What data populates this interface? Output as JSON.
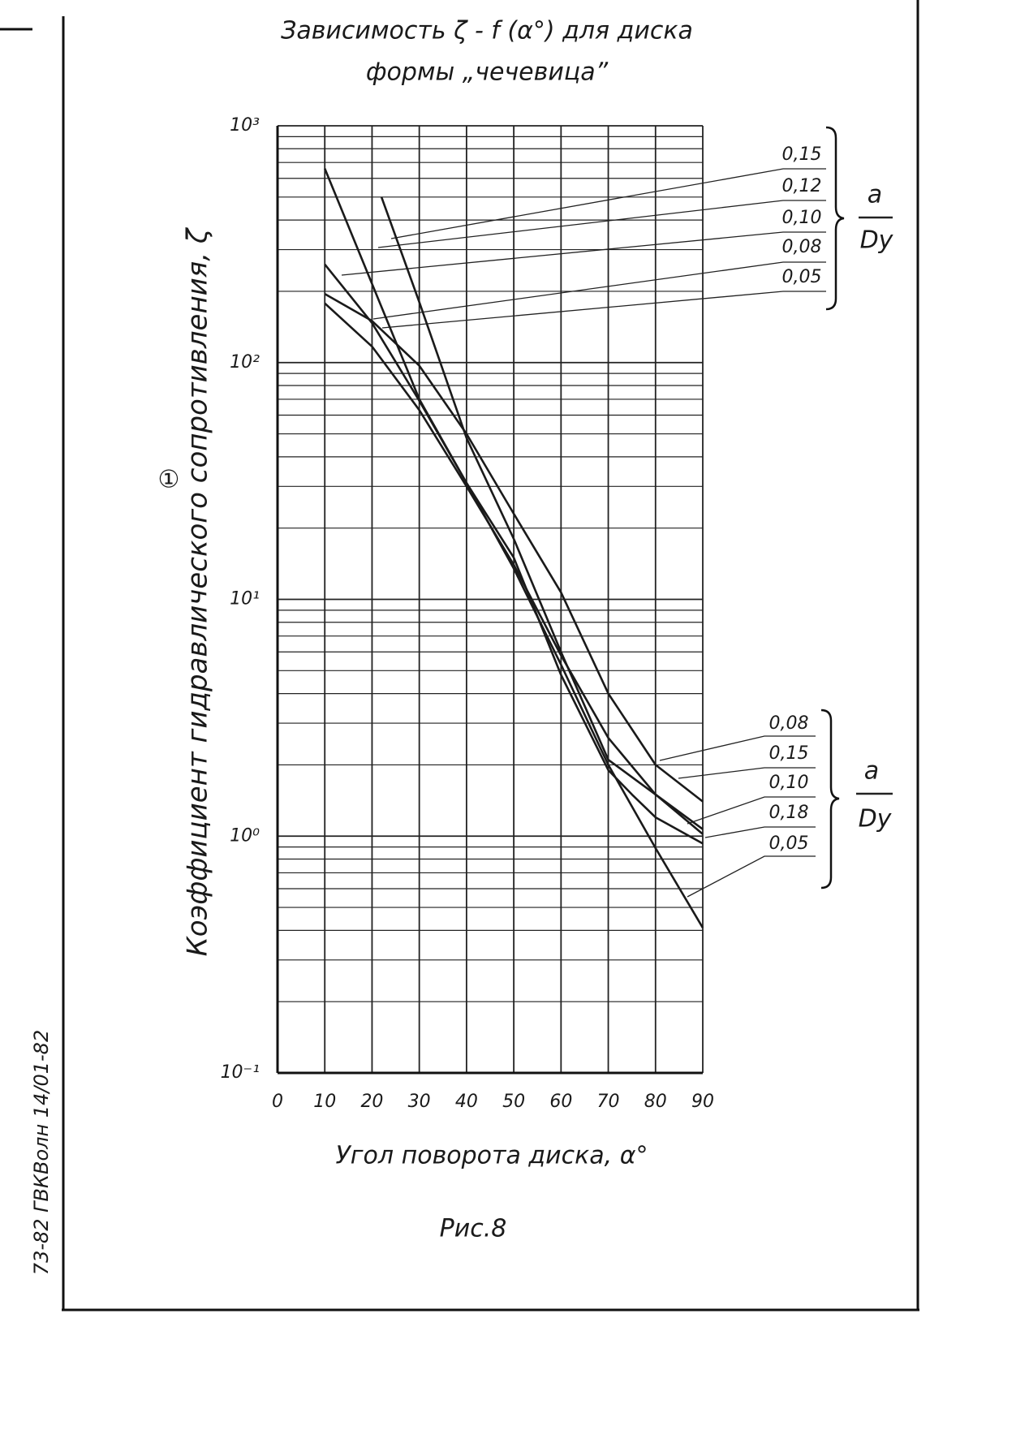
{
  "chart_data": {
    "type": "line",
    "title": "Зависимость ζ - f (α°) для диска",
    "subtitle": "формы „чечевица”",
    "figure_number": "①",
    "x_label": "Угол поворота диска, α°",
    "y_label": "Коэффициент гидравлического сопротивления, ζ",
    "caption": "Рис.8",
    "margin_note": "73-82  ГВКВолн 14/01-82",
    "legend_title": {
      "top": "a",
      "bottom": "Dу"
    },
    "secondary_legend": [
      "0,08",
      "0,15",
      "0,10",
      "0,18",
      "0,05"
    ],
    "log_y": true,
    "grid": true,
    "xlim": [
      0,
      90
    ],
    "xticks": [
      0,
      10,
      20,
      30,
      40,
      50,
      60,
      70,
      80,
      90
    ],
    "ylim": [
      0.1,
      1000
    ],
    "yticks": [
      {
        "value": 1000,
        "label": "10³"
      },
      {
        "value": 100,
        "label": "10²"
      },
      {
        "value": 10,
        "label": "10¹"
      },
      {
        "value": 1,
        "label": "10⁰"
      },
      {
        "value": 0.1,
        "label": "10⁻¹"
      }
    ],
    "minor_grid_y": [
      0.2,
      0.3,
      0.4,
      0.5,
      0.6,
      0.7,
      0.8,
      0.9,
      2,
      3,
      4,
      5,
      6,
      7,
      8,
      9,
      20,
      30,
      40,
      50,
      60,
      70,
      80,
      90,
      200,
      300,
      400,
      500,
      600,
      700,
      800,
      900
    ],
    "series": [
      {
        "name": "0,15",
        "color": "#1a1a1a",
        "x": [
          22,
          30,
          40,
          50,
          60,
          70,
          80,
          90
        ],
        "values": [
          500,
          180,
          48,
          18,
          6,
          2.1,
          1.5,
          1.07
        ]
      },
      {
        "name": "0,12",
        "color": "#1a1a1a",
        "x": [
          10,
          30,
          40,
          50,
          60,
          70,
          75,
          80,
          90
        ],
        "values": [
          660,
          70,
          31,
          15,
          4.8,
          1.9,
          1.5,
          1.2,
          0.93
        ]
      },
      {
        "name": "0,10",
        "color": "#1a1a1a",
        "x": [
          10,
          20,
          30,
          40,
          50,
          60,
          70,
          80,
          90
        ],
        "values": [
          260,
          147,
          69,
          31,
          13.5,
          5.3,
          2,
          0.89,
          0.41
        ]
      },
      {
        "name": "0,08",
        "color": "#1a1a1a",
        "x": [
          10,
          20,
          30,
          40,
          50,
          60,
          70,
          80,
          90
        ],
        "values": [
          195,
          150,
          97,
          50,
          23,
          10.7,
          4,
          2,
          1.4
        ]
      },
      {
        "name": "0,05",
        "color": "#1a1a1a",
        "x": [
          10,
          20,
          30,
          40,
          50,
          60,
          70,
          80,
          90
        ],
        "values": [
          178,
          117,
          63,
          30,
          14,
          5.8,
          2.6,
          1.5,
          1.02
        ]
      }
    ]
  }
}
